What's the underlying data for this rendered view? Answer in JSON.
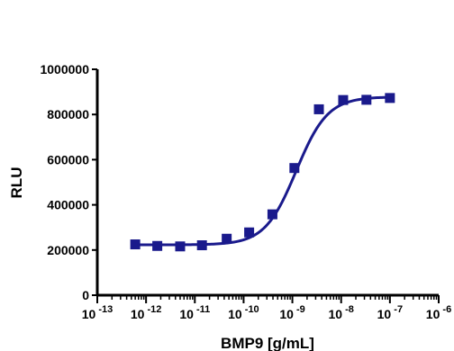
{
  "chart_data": {
    "type": "scatter",
    "xlabel": "BMP9 [g/mL]",
    "ylabel": "RLU",
    "x_scale": "log",
    "xlim": [
      1e-13,
      1e-06
    ],
    "ylim": [
      0,
      1000000
    ],
    "x_tick_exponents": [
      "-13",
      "-12",
      "-11",
      "-10",
      "-9",
      "-8",
      "-7",
      "-6"
    ],
    "x_tick_base": "10",
    "y_ticks": [
      "0",
      "200000",
      "400000",
      "600000",
      "800000",
      "1000000"
    ],
    "grid": false,
    "legend": "none",
    "colors": {
      "series": "#1a1a8c",
      "axis": "#000000"
    },
    "series": [
      {
        "marker": "square",
        "points": [
          {
            "x": 6e-13,
            "y": 225000
          },
          {
            "x": 1.7e-12,
            "y": 218000
          },
          {
            "x": 5e-12,
            "y": 216000
          },
          {
            "x": 1.4e-11,
            "y": 221000
          },
          {
            "x": 4.5e-11,
            "y": 250000
          },
          {
            "x": 1.3e-10,
            "y": 278000
          },
          {
            "x": 3.9e-10,
            "y": 358000
          },
          {
            "x": 1.1e-09,
            "y": 563000
          },
          {
            "x": 3.5e-09,
            "y": 823000
          },
          {
            "x": 1.1e-08,
            "y": 864000
          },
          {
            "x": 3.3e-08,
            "y": 865000
          },
          {
            "x": 1e-07,
            "y": 873000
          }
        ]
      }
    ],
    "fit": {
      "type": "4PL",
      "bottom": 223000,
      "top": 878000,
      "ec50": 1.2e-09,
      "hill": 1.35,
      "range": [
        6e-13,
        1e-07
      ]
    }
  }
}
